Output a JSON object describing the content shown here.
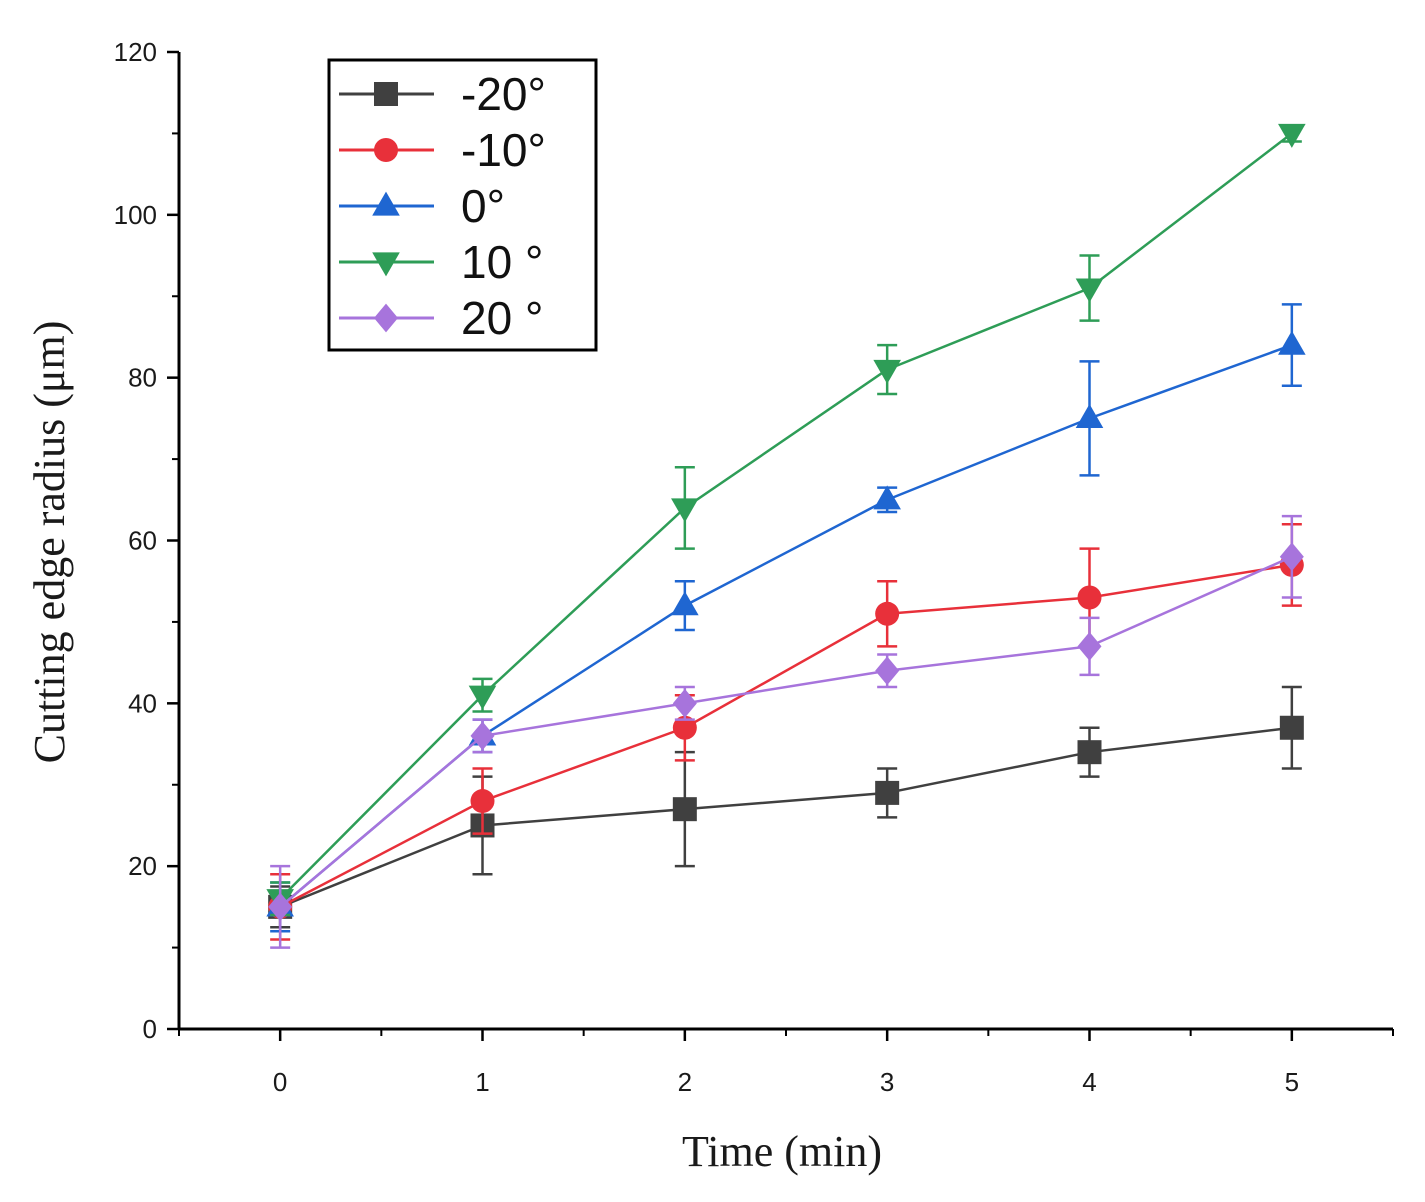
{
  "chart_data": {
    "type": "line",
    "title": "",
    "xlabel": "Time (min)",
    "ylabel": "Cutting edge radius (μm)",
    "x": [
      0,
      1,
      2,
      3,
      4,
      5
    ],
    "xlim": [
      -0.5,
      5.5
    ],
    "ylim": [
      0,
      120
    ],
    "x_ticks": [
      "0",
      "1",
      "2",
      "3",
      "4",
      "5"
    ],
    "y_ticks": [
      "0",
      "20",
      "40",
      "60",
      "80",
      "100",
      "120"
    ],
    "grid": false,
    "legend_position": "top-left",
    "series": [
      {
        "name": "-20°",
        "color": "#404040",
        "marker": "square",
        "values": [
          15,
          25,
          27,
          29,
          34,
          37
        ],
        "error": [
          2.5,
          6,
          7,
          3,
          3,
          5
        ]
      },
      {
        "name": "-10°",
        "color": "#e8303a",
        "marker": "circle",
        "values": [
          15,
          28,
          37,
          51,
          53,
          57
        ],
        "error": [
          4,
          4,
          4,
          4,
          6,
          5
        ]
      },
      {
        "name": "0°",
        "color": "#1f66d1",
        "marker": "triangle-up",
        "values": [
          15,
          36,
          52,
          65,
          75,
          84
        ],
        "error": [
          3,
          2,
          3,
          1.5,
          7,
          5
        ]
      },
      {
        "name": "10 °",
        "color": "#2e9d57",
        "marker": "triangle-down",
        "values": [
          16,
          41,
          64,
          81,
          91,
          110
        ],
        "error": [
          2,
          2,
          5,
          3,
          4,
          1
        ]
      },
      {
        "name": "20 °",
        "color": "#a774dc",
        "marker": "diamond",
        "values": [
          15,
          36,
          40,
          44,
          47,
          58
        ],
        "error": [
          5,
          2,
          2,
          2,
          3.5,
          5
        ]
      }
    ]
  }
}
